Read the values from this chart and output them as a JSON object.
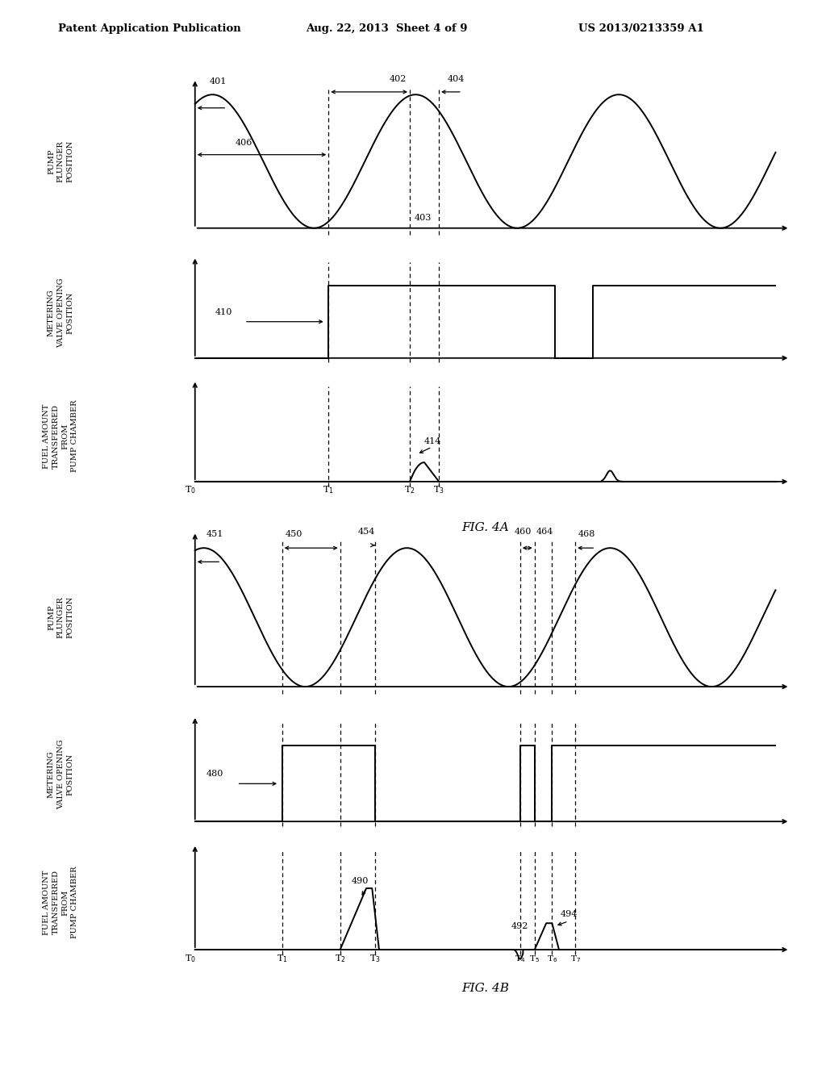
{
  "background_color": "#ffffff",
  "header_left": "Patent Application Publication",
  "header_center": "Aug. 22, 2013  Sheet 4 of 9",
  "header_right": "US 2013/0213359 A1",
  "fig_label_A": "FIG. 4A",
  "fig_label_B": "FIG. 4B",
  "ylabel_pump": "PUMP\nPLUNGER\nPOSITION",
  "ylabel_valve": "METERING\nVALVE OPENING\nPOSITION",
  "ylabel_fuel": "FUEL AMOUNT\nTRANSFERRED\nFROM\nPUMP CHAMBER",
  "T1_4a": 2.3,
  "T2_4a": 3.7,
  "T3_4a": 4.2,
  "T1_4b": 1.5,
  "T2_4b": 2.5,
  "T3_4b": 3.1,
  "T4_4b": 5.6,
  "T5_4b": 5.85,
  "T6_4b": 6.15,
  "T7_4b": 6.55
}
